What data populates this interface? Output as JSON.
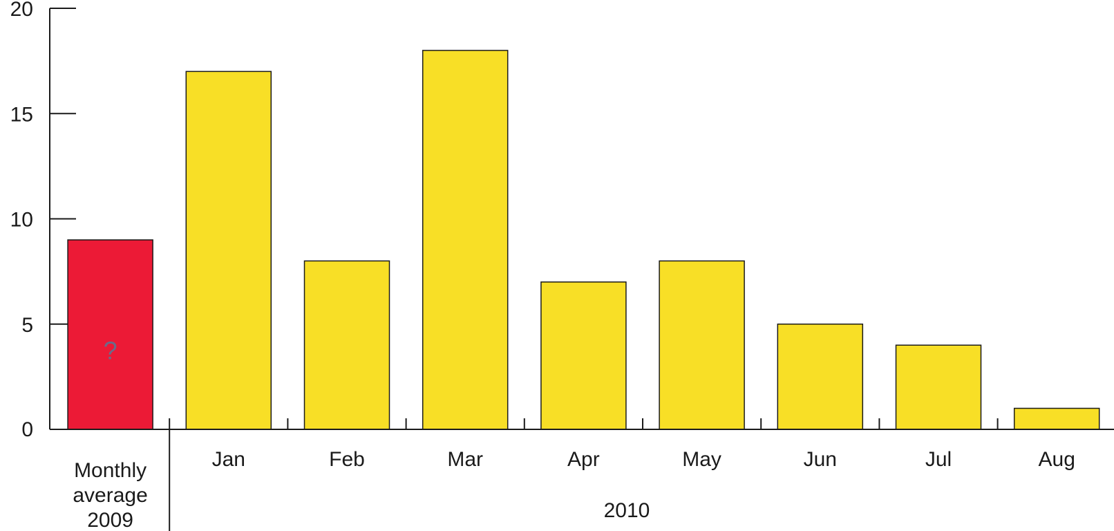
{
  "chart_data": {
    "type": "bar",
    "categories": [
      "Monthly average 2009",
      "Jan",
      "Feb",
      "Mar",
      "Apr",
      "May",
      "Jun",
      "Jul",
      "Aug"
    ],
    "category_lines": [
      [
        "Monthly",
        "average",
        "2009"
      ],
      [
        "Jan"
      ],
      [
        "Feb"
      ],
      [
        "Mar"
      ],
      [
        "Apr"
      ],
      [
        "May"
      ],
      [
        "Jun"
      ],
      [
        "Jul"
      ],
      [
        "Aug"
      ]
    ],
    "values": [
      9,
      17,
      8,
      18,
      7,
      8,
      5,
      4,
      1
    ],
    "bar_colors": [
      "#ec1a36",
      "#f8df26",
      "#f8df26",
      "#f8df26",
      "#f8df26",
      "#f8df26",
      "#f8df26",
      "#f8df26",
      "#f8df26"
    ],
    "annotations": [
      "?",
      "",
      "",
      "",
      "",
      "",
      "",
      "",
      ""
    ],
    "group_label": "2010",
    "y_ticks": [
      0,
      5,
      10,
      15,
      20
    ],
    "ylim": [
      0,
      20
    ],
    "title": "",
    "xlabel": "",
    "ylabel": "",
    "grid": false
  }
}
